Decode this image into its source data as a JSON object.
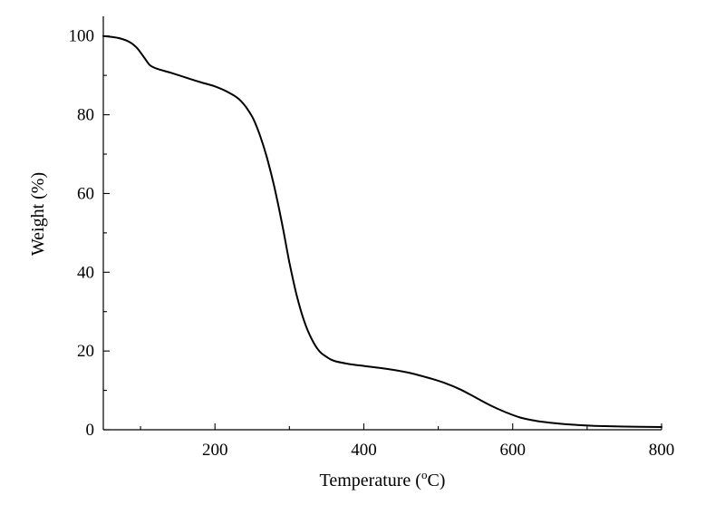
{
  "chart_data": {
    "type": "line",
    "title": "",
    "xlabel": "Temperature (°C)",
    "xlabel_prefix": "Temperature (",
    "xlabel_sup": "o",
    "xlabel_suffix": "C)",
    "ylabel": "Weight (%)",
    "xlim": [
      50,
      800
    ],
    "ylim": [
      0,
      105
    ],
    "x_ticks": [
      200,
      400,
      600,
      800
    ],
    "x_tick_labels": [
      "200",
      "400",
      "600",
      "800"
    ],
    "x_minor_ticks": [
      100,
      300,
      500,
      700
    ],
    "y_ticks": [
      0,
      20,
      40,
      60,
      80,
      100
    ],
    "y_tick_labels": [
      "0",
      "20",
      "40",
      "60",
      "80",
      "100"
    ],
    "y_minor_ticks": [
      10,
      30,
      50,
      70,
      90
    ],
    "grid": false,
    "legend": "none",
    "series": [
      {
        "x": [
          50,
          70,
          85,
          95,
          105,
          112,
          118,
          125,
          140,
          160,
          180,
          200,
          220,
          235,
          250,
          260,
          270,
          280,
          290,
          300,
          310,
          320,
          330,
          340,
          350,
          360,
          380,
          400,
          430,
          460,
          490,
          510,
          530,
          550,
          570,
          590,
          610,
          630,
          650,
          680,
          710,
          750,
          800
        ],
        "y": [
          100,
          99.5,
          98.5,
          97,
          94.5,
          92.7,
          92,
          91.5,
          90.7,
          89.5,
          88.3,
          87.2,
          85.5,
          83.5,
          79.5,
          75,
          69,
          61.5,
          52.5,
          42.5,
          34,
          27.5,
          23,
          20,
          18.5,
          17.5,
          16.7,
          16.2,
          15.5,
          14.5,
          13,
          11.8,
          10.2,
          8.2,
          6.2,
          4.5,
          3.1,
          2.3,
          1.8,
          1.3,
          1,
          0.8,
          0.7
        ]
      }
    ]
  }
}
